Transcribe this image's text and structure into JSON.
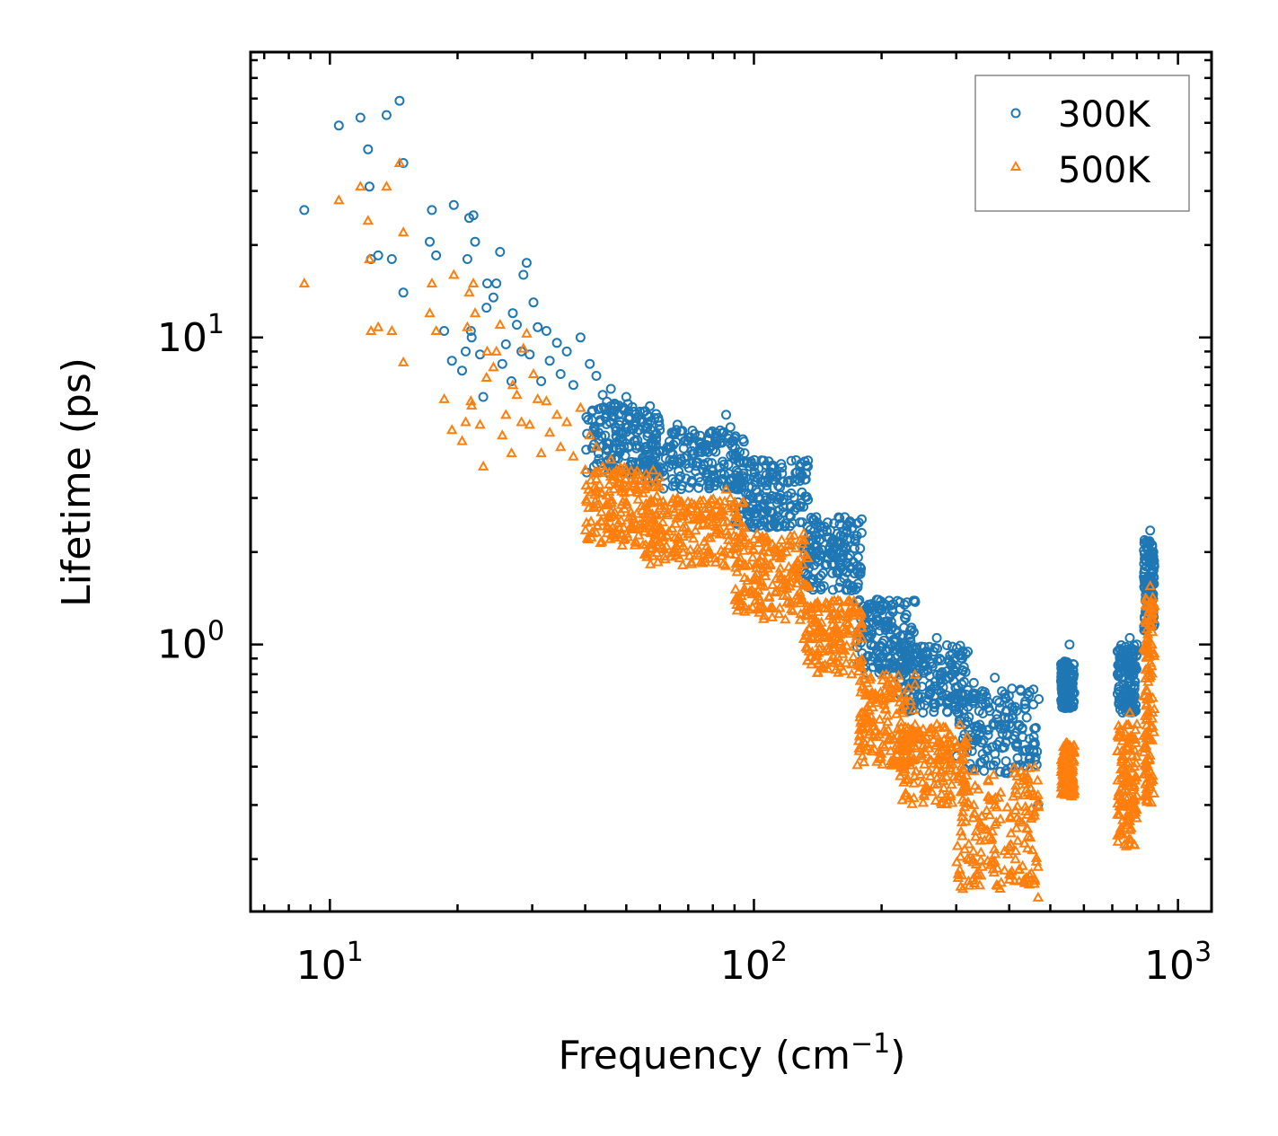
{
  "chart_data": {
    "type": "scatter",
    "x_scale": "log",
    "y_scale": "log",
    "xlabel": "Frequency (cm",
    "xlabel_sup": "−1",
    "xlabel_close": ")",
    "ylabel": "Lifetime (ps)",
    "xlim": [
      6.5,
      1200
    ],
    "ylim": [
      0.135,
      85
    ],
    "x_ticks": [
      {
        "base": "10",
        "exp": "1",
        "value": 10
      },
      {
        "base": "10",
        "exp": "2",
        "value": 100
      },
      {
        "base": "10",
        "exp": "3",
        "value": 1000
      }
    ],
    "y_ticks": [
      {
        "base": "10",
        "exp": "0",
        "value": 1
      },
      {
        "base": "10",
        "exp": "1",
        "value": 10
      }
    ],
    "legend": {
      "position": "top-right"
    },
    "series": [
      {
        "name": "300K",
        "marker": "circle",
        "color": "#1f77b4",
        "points": [
          [
            8.7,
            26.0
          ],
          [
            10.5,
            49.0
          ],
          [
            11.8,
            52.0
          ],
          [
            12.3,
            41.0
          ],
          [
            12.4,
            31.0
          ],
          [
            12.5,
            18.0
          ],
          [
            13.0,
            18.5
          ],
          [
            13.6,
            53.0
          ],
          [
            14.0,
            18.0
          ],
          [
            14.6,
            59.0
          ],
          [
            14.9,
            37.0
          ],
          [
            14.9,
            14.0
          ],
          [
            17.2,
            20.5
          ],
          [
            17.4,
            26.0
          ],
          [
            17.8,
            18.5
          ],
          [
            18.6,
            10.5
          ],
          [
            19.4,
            8.4
          ],
          [
            19.6,
            27.0
          ],
          [
            20.5,
            7.8
          ],
          [
            20.9,
            9.0
          ],
          [
            21.1,
            18.0
          ],
          [
            21.3,
            24.5
          ],
          [
            21.5,
            10.5
          ],
          [
            21.6,
            10.0
          ],
          [
            21.8,
            25.0
          ],
          [
            22.0,
            20.5
          ],
          [
            22.6,
            8.8
          ],
          [
            23.0,
            6.4
          ],
          [
            23.4,
            12.5
          ],
          [
            23.5,
            15.0
          ],
          [
            24.3,
            13.5
          ],
          [
            24.7,
            15.0
          ],
          [
            25.2,
            19.0
          ],
          [
            25.5,
            8.2
          ],
          [
            26.0,
            9.5
          ],
          [
            26.8,
            7.2
          ],
          [
            27.0,
            12.0
          ],
          [
            27.6,
            11.0
          ],
          [
            28.3,
            9.0
          ],
          [
            28.6,
            16.0
          ],
          [
            29.1,
            17.5
          ],
          [
            29.6,
            8.8
          ],
          [
            30.2,
            13.0
          ],
          [
            30.9,
            10.8
          ],
          [
            31.5,
            7.2
          ],
          [
            32.4,
            10.5
          ],
          [
            33.0,
            8.4
          ],
          [
            34.3,
            9.6
          ],
          [
            35.0,
            7.6
          ],
          [
            36.2,
            9.0
          ],
          [
            37.5,
            7.0
          ],
          [
            39.0,
            10.0
          ],
          [
            41.0,
            8.2
          ],
          [
            42.5,
            7.5
          ],
          [
            44.0,
            6.5
          ],
          [
            46.0,
            6.8
          ],
          [
            48.0,
            6.0
          ],
          [
            50.0,
            6.4
          ],
          [
            53.0,
            5.5
          ],
          [
            56.0,
            5.6
          ],
          [
            60.0,
            5.0
          ],
          [
            64.0,
            4.9
          ],
          [
            66.0,
            5.2
          ],
          [
            70.0,
            4.6
          ],
          [
            75.0,
            4.5
          ],
          [
            80.0,
            4.3
          ],
          [
            86.0,
            5.6
          ],
          [
            88.0,
            5.1
          ],
          [
            90.0,
            4.7
          ],
          [
            95.0,
            4.2
          ],
          [
            100.0,
            3.8
          ],
          [
            108.0,
            3.4
          ],
          [
            115.0,
            3.0
          ],
          [
            122.0,
            2.8
          ],
          [
            130.0,
            2.5
          ],
          [
            140.0,
            2.2
          ],
          [
            150.0,
            1.9
          ],
          [
            160.0,
            1.6
          ],
          [
            170.0,
            1.5
          ],
          [
            180.0,
            1.1
          ],
          [
            195.0,
            0.95
          ],
          [
            210.0,
            0.9
          ],
          [
            230.0,
            0.85
          ],
          [
            255.0,
            0.95
          ],
          [
            270.0,
            1.05
          ],
          [
            290.0,
            0.92
          ],
          [
            310.0,
            0.9
          ],
          [
            330.0,
            0.75
          ],
          [
            350.0,
            0.7
          ],
          [
            370.0,
            0.78
          ],
          [
            400.0,
            0.55
          ],
          [
            430.0,
            0.5
          ],
          [
            460.0,
            0.42
          ],
          [
            468.0,
            0.3
          ],
          [
            540.0,
            0.88
          ],
          [
            555.0,
            1.0
          ],
          [
            565.0,
            0.78
          ],
          [
            720.0,
            0.95
          ],
          [
            740.0,
            0.6
          ],
          [
            770.0,
            1.05
          ],
          [
            800.0,
            1.0
          ],
          [
            840.0,
            1.5
          ],
          [
            860.0,
            2.35
          ],
          [
            875.0,
            2.0
          ]
        ],
        "bands": [
          {
            "x": [
              40,
              60
            ],
            "y": [
              3.6,
              6.2
            ]
          },
          {
            "x": [
              55,
              95
            ],
            "y": [
              3.2,
              5.0
            ]
          },
          {
            "x": [
              90,
              135
            ],
            "y": [
              2.4,
              4.0
            ]
          },
          {
            "x": [
              130,
              180
            ],
            "y": [
              1.5,
              2.6
            ]
          },
          {
            "x": [
              175,
              240
            ],
            "y": [
              0.8,
              1.4
            ]
          },
          {
            "x": [
              220,
              320
            ],
            "y": [
              0.6,
              1.0
            ]
          },
          {
            "x": [
              300,
              470
            ],
            "y": [
              0.38,
              0.72
            ]
          },
          {
            "x": [
              530,
              570
            ],
            "y": [
              0.62,
              0.88
            ]
          },
          {
            "x": [
              720,
              800
            ],
            "y": [
              0.6,
              1.0
            ]
          },
          {
            "x": [
              830,
              880
            ],
            "y": [
              1.1,
              2.2
            ]
          }
        ]
      },
      {
        "name": "500K",
        "marker": "triangle",
        "color": "#ff7f0e",
        "points": [
          [
            8.7,
            15.0
          ],
          [
            10.5,
            28.0
          ],
          [
            11.8,
            31.0
          ],
          [
            12.3,
            24.0
          ],
          [
            12.4,
            18.0
          ],
          [
            12.5,
            10.5
          ],
          [
            13.0,
            10.8
          ],
          [
            13.6,
            31.0
          ],
          [
            14.0,
            10.5
          ],
          [
            14.6,
            37.0
          ],
          [
            14.9,
            22.0
          ],
          [
            14.9,
            8.3
          ],
          [
            17.2,
            12.0
          ],
          [
            17.4,
            15.0
          ],
          [
            17.8,
            10.5
          ],
          [
            18.6,
            6.3
          ],
          [
            19.4,
            5.0
          ],
          [
            19.6,
            16.0
          ],
          [
            20.5,
            4.6
          ],
          [
            20.9,
            5.3
          ],
          [
            21.1,
            10.8
          ],
          [
            21.3,
            14.0
          ],
          [
            21.5,
            6.2
          ],
          [
            21.6,
            6.0
          ],
          [
            21.8,
            15.0
          ],
          [
            22.0,
            12.0
          ],
          [
            22.6,
            5.2
          ],
          [
            23.0,
            3.8
          ],
          [
            23.4,
            7.4
          ],
          [
            23.5,
            9.0
          ],
          [
            24.3,
            8.0
          ],
          [
            24.7,
            9.0
          ],
          [
            25.2,
            11.0
          ],
          [
            25.5,
            4.8
          ],
          [
            26.0,
            5.6
          ],
          [
            26.8,
            4.2
          ],
          [
            27.0,
            7.0
          ],
          [
            27.6,
            6.5
          ],
          [
            28.3,
            5.3
          ],
          [
            28.6,
            9.2
          ],
          [
            29.1,
            10.3
          ],
          [
            29.6,
            5.2
          ],
          [
            30.2,
            7.6
          ],
          [
            30.9,
            6.3
          ],
          [
            31.5,
            4.2
          ],
          [
            32.4,
            6.2
          ],
          [
            33.0,
            4.9
          ],
          [
            34.3,
            5.6
          ],
          [
            35.0,
            4.4
          ],
          [
            36.2,
            5.3
          ],
          [
            37.5,
            4.1
          ],
          [
            39.0,
            5.9
          ],
          [
            41.0,
            4.8
          ],
          [
            42.5,
            4.4
          ],
          [
            44.0,
            3.8
          ],
          [
            46.0,
            4.0
          ],
          [
            48.0,
            3.5
          ],
          [
            50.0,
            3.7
          ],
          [
            53.0,
            3.2
          ],
          [
            56.0,
            3.3
          ],
          [
            60.0,
            2.9
          ],
          [
            64.0,
            2.9
          ],
          [
            66.0,
            3.0
          ],
          [
            70.0,
            2.7
          ],
          [
            75.0,
            2.6
          ],
          [
            80.0,
            2.5
          ],
          [
            86.0,
            3.2
          ],
          [
            88.0,
            3.0
          ],
          [
            90.0,
            2.7
          ],
          [
            95.0,
            2.4
          ],
          [
            100.0,
            2.2
          ],
          [
            108.0,
            2.0
          ],
          [
            115.0,
            1.7
          ],
          [
            122.0,
            1.6
          ],
          [
            130.0,
            1.4
          ],
          [
            140.0,
            1.2
          ],
          [
            150.0,
            1.05
          ],
          [
            160.0,
            0.85
          ],
          [
            170.0,
            0.8
          ],
          [
            180.0,
            0.6
          ],
          [
            195.0,
            0.5
          ],
          [
            210.0,
            0.45
          ],
          [
            230.0,
            0.42
          ],
          [
            255.0,
            0.5
          ],
          [
            270.0,
            0.55
          ],
          [
            290.0,
            0.48
          ],
          [
            310.0,
            0.45
          ],
          [
            330.0,
            0.3
          ],
          [
            350.0,
            0.25
          ],
          [
            370.0,
            0.3
          ],
          [
            400.0,
            0.22
          ],
          [
            430.0,
            0.19
          ],
          [
            460.0,
            0.17
          ],
          [
            468.0,
            0.15
          ],
          [
            540.0,
            0.42
          ],
          [
            555.0,
            0.47
          ],
          [
            565.0,
            0.37
          ],
          [
            720.0,
            0.45
          ],
          [
            740.0,
            0.3
          ],
          [
            770.0,
            0.6
          ],
          [
            800.0,
            0.55
          ],
          [
            840.0,
            0.95
          ],
          [
            860.0,
            1.55
          ],
          [
            875.0,
            1.3
          ]
        ],
        "bands": [
          {
            "x": [
              40,
              60
            ],
            "y": [
              2.1,
              3.8
            ]
          },
          {
            "x": [
              55,
              95
            ],
            "y": [
              1.8,
              3.0
            ]
          },
          {
            "x": [
              90,
              135
            ],
            "y": [
              1.2,
              2.3
            ]
          },
          {
            "x": [
              130,
              180
            ],
            "y": [
              0.8,
              1.4
            ]
          },
          {
            "x": [
              175,
              240
            ],
            "y": [
              0.4,
              0.8
            ]
          },
          {
            "x": [
              220,
              320
            ],
            "y": [
              0.3,
              0.55
            ]
          },
          {
            "x": [
              300,
              470
            ],
            "y": [
              0.16,
              0.4
            ]
          },
          {
            "x": [
              530,
              570
            ],
            "y": [
              0.32,
              0.48
            ]
          },
          {
            "x": [
              720,
              800
            ],
            "y": [
              0.22,
              0.55
            ]
          },
          {
            "x": [
              830,
              880
            ],
            "y": [
              0.3,
              1.45
            ]
          }
        ]
      }
    ]
  }
}
